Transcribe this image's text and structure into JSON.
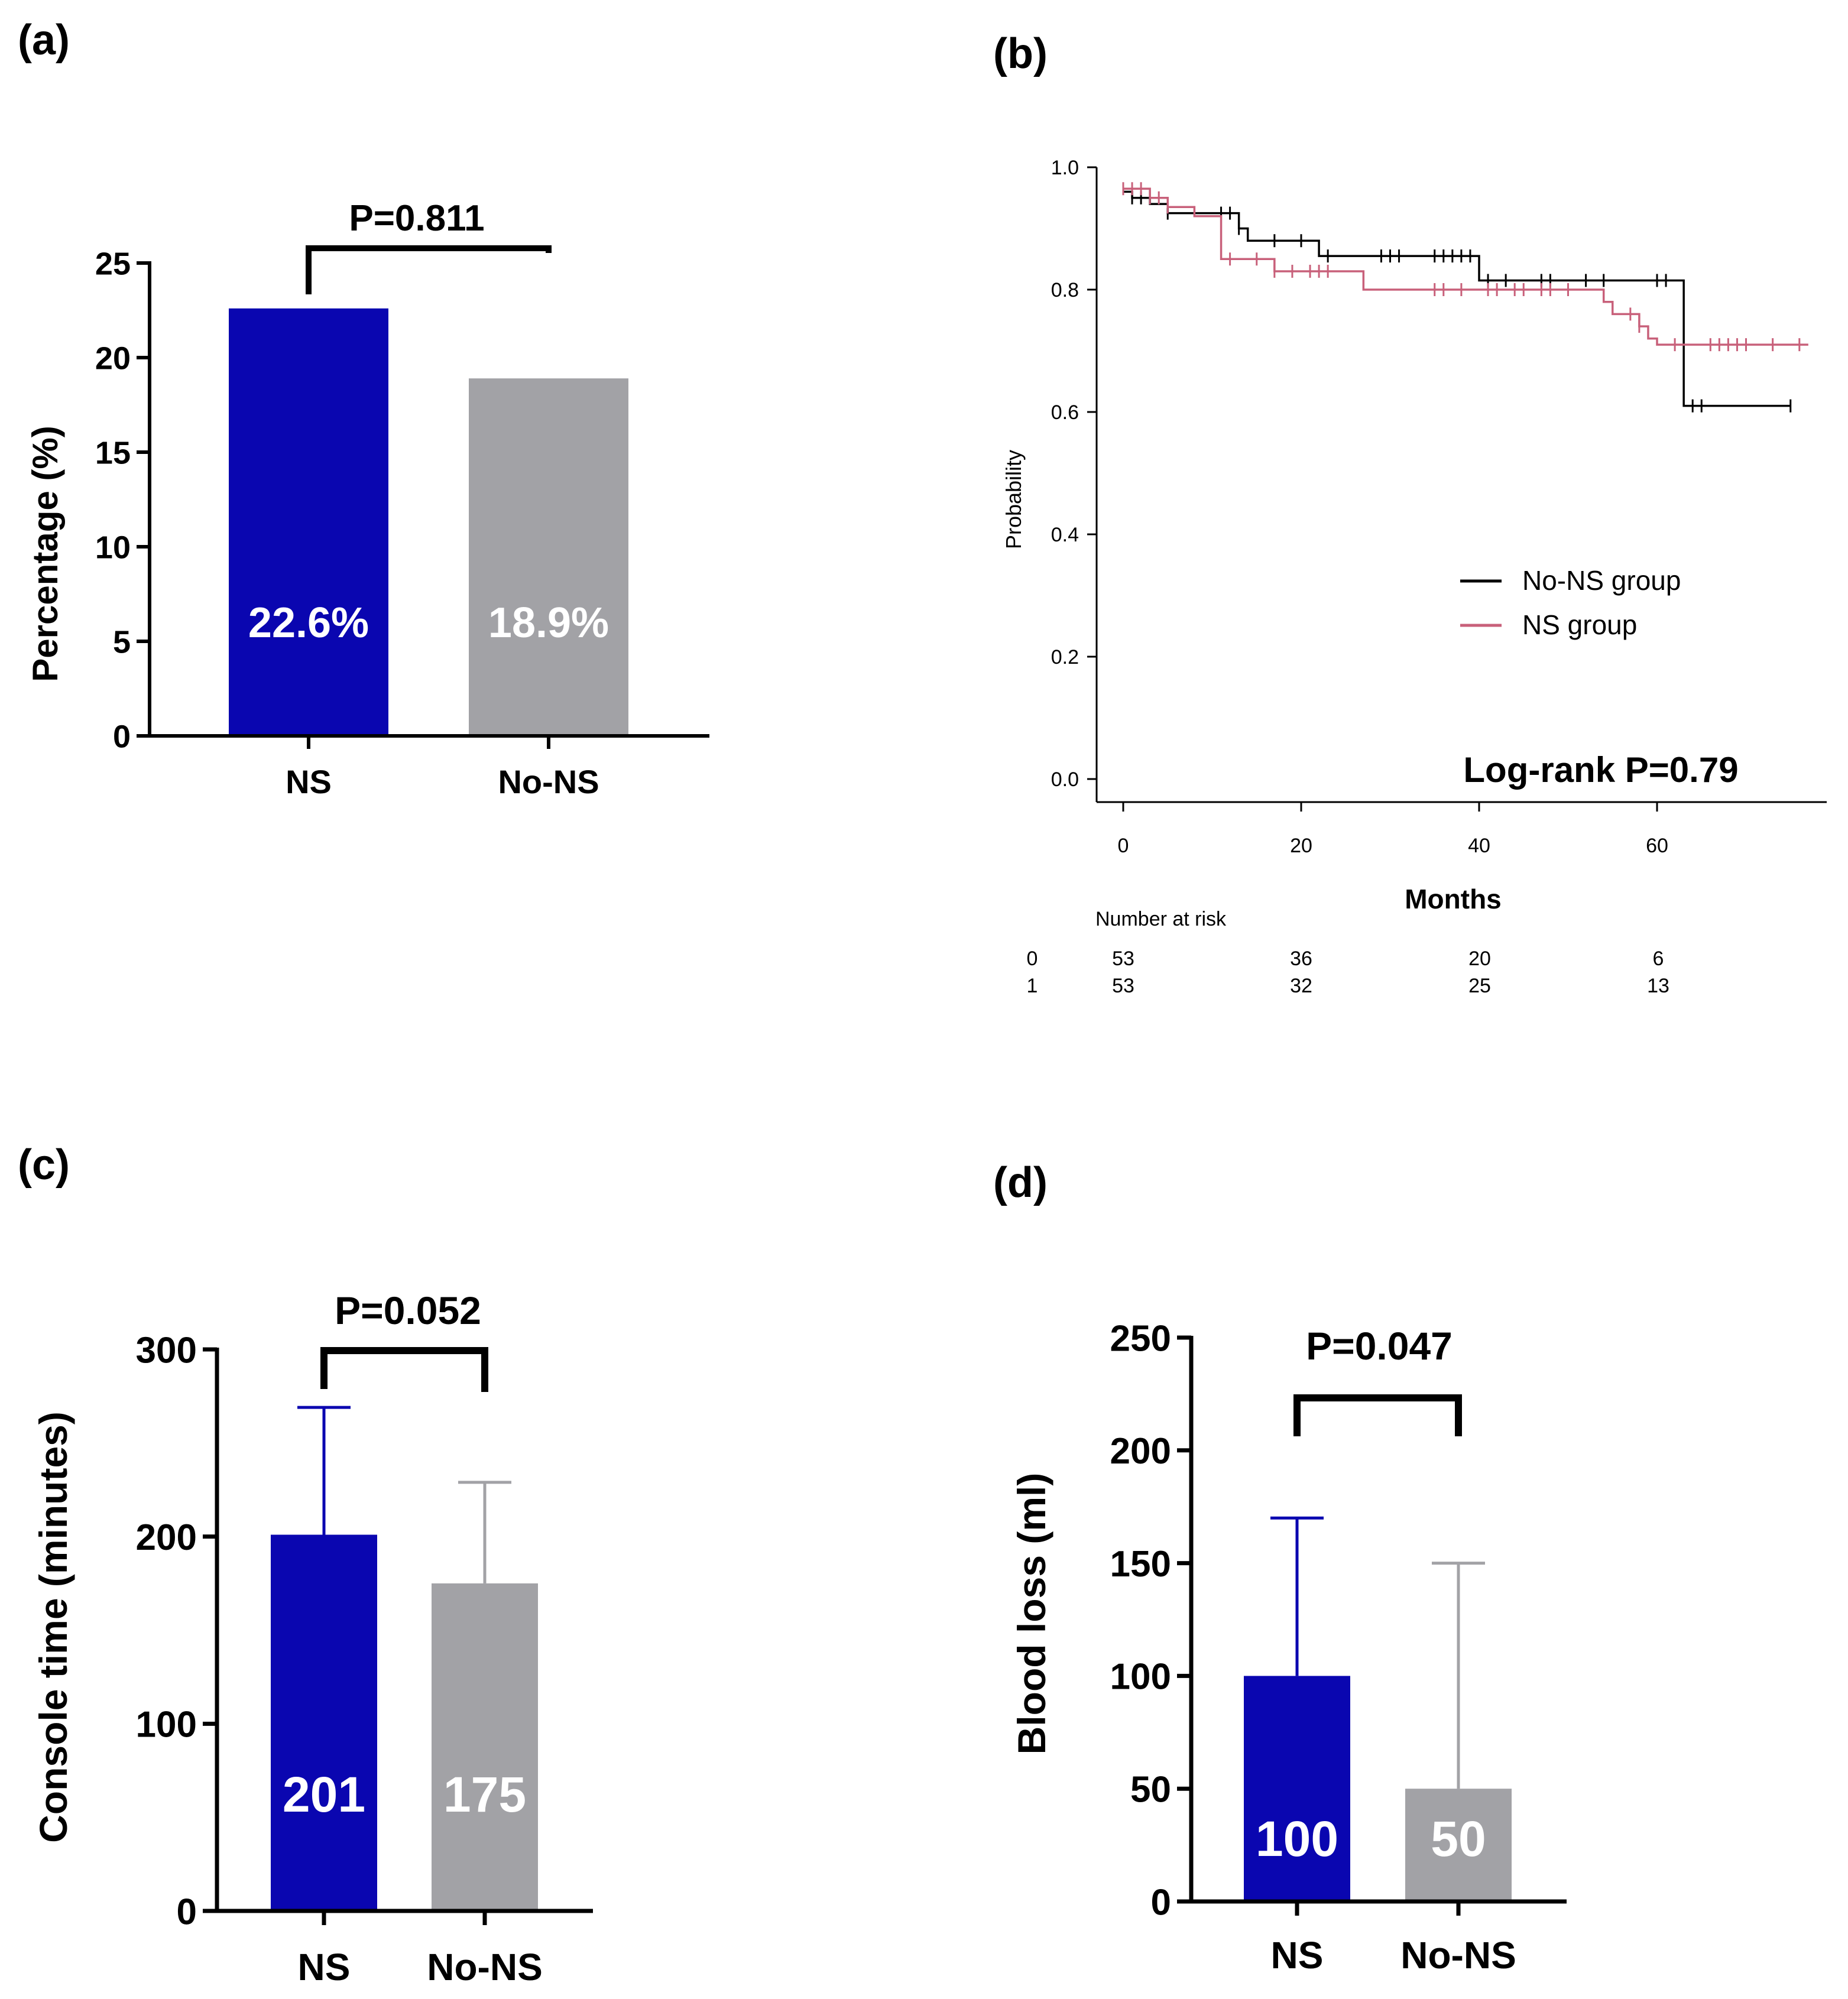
{
  "panels": {
    "a": {
      "label": "(a)"
    },
    "b": {
      "label": "(b)"
    },
    "c": {
      "label": "(c)"
    },
    "d": {
      "label": "(d)"
    }
  },
  "colors": {
    "ns": "#0a06b0",
    "no_ns": "#a2a2a6",
    "km_no_ns": "#000000",
    "km_ns": "#c8607a"
  },
  "chart_data": [
    {
      "id": "a",
      "type": "bar",
      "categories": [
        "NS",
        "No-NS"
      ],
      "values": [
        22.6,
        18.9
      ],
      "value_labels": [
        "22.6%",
        "18.9%"
      ],
      "ylabel": "Percentage (%)",
      "ylim": [
        0,
        25
      ],
      "yticks": [
        0,
        5,
        10,
        15,
        20,
        25
      ],
      "annotation": "P=0.811"
    },
    {
      "id": "b",
      "type": "line",
      "subtype": "kaplan-meier",
      "ylabel": "Probability",
      "xlabel": "Months",
      "xlim": [
        -3,
        79
      ],
      "ylim": [
        -0.04,
        1.0
      ],
      "xticks": [
        0,
        20,
        40,
        60
      ],
      "yticks": [
        "0.0",
        "0.2",
        "0.4",
        "0.6",
        "0.8",
        "1.0"
      ],
      "legend": [
        "No-NS group",
        "NS group"
      ],
      "annotation": "Log-rank P=0.79",
      "series": [
        {
          "name": "No-NS group",
          "color": "#000000",
          "steps": [
            [
              0,
              0.96
            ],
            [
              1,
              0.95
            ],
            [
              3,
              0.94
            ],
            [
              5,
              0.925
            ],
            [
              13,
              0.9
            ],
            [
              14,
              0.88
            ],
            [
              22,
              0.855
            ],
            [
              40,
              0.815
            ],
            [
              63,
              0.61
            ],
            [
              75,
              0.61
            ]
          ],
          "censors": [
            1,
            2,
            5,
            11,
            12,
            13,
            17,
            20,
            23,
            29,
            30,
            31,
            35,
            36,
            37,
            38,
            39,
            41,
            43,
            47,
            48,
            52,
            54,
            60,
            61,
            64,
            65,
            75
          ]
        },
        {
          "name": "NS group",
          "color": "#c8607a",
          "steps": [
            [
              0,
              0.965
            ],
            [
              3,
              0.95
            ],
            [
              5,
              0.935
            ],
            [
              8,
              0.92
            ],
            [
              11,
              0.85
            ],
            [
              17,
              0.83
            ],
            [
              27,
              0.8
            ],
            [
              54,
              0.78
            ],
            [
              55,
              0.76
            ],
            [
              58,
              0.74
            ],
            [
              59,
              0.72
            ],
            [
              60,
              0.71
            ],
            [
              77,
              0.71
            ]
          ],
          "censors": [
            0,
            1,
            2,
            3,
            4,
            5,
            12,
            15,
            17,
            19,
            21,
            22,
            23,
            35,
            36,
            38,
            41,
            42,
            44,
            45,
            47,
            48,
            50,
            57,
            58,
            62,
            66,
            67,
            68,
            69,
            70,
            73,
            76
          ]
        }
      ],
      "risk_table": {
        "title": "Number at risk",
        "times": [
          0,
          20,
          40,
          60
        ],
        "rows": [
          {
            "group": "0",
            "counts": [
              "53",
              "36",
              "20",
              "6"
            ]
          },
          {
            "group": "1",
            "counts": [
              "53",
              "32",
              "25",
              "13"
            ]
          }
        ]
      }
    },
    {
      "id": "c",
      "type": "bar",
      "categories": [
        "NS",
        "No-NS"
      ],
      "values": [
        201,
        175
      ],
      "errors": [
        68,
        54
      ],
      "value_labels": [
        "201",
        "175"
      ],
      "ylabel": "Console time (minutes)",
      "ylim": [
        0,
        300
      ],
      "yticks": [
        0,
        100,
        200,
        300
      ],
      "annotation": "P=0.052"
    },
    {
      "id": "d",
      "type": "bar",
      "categories": [
        "NS",
        "No-NS"
      ],
      "values": [
        100,
        50
      ],
      "errors": [
        70,
        100
      ],
      "value_labels": [
        "100",
        "50"
      ],
      "ylabel": "Blood loss (ml)",
      "ylim": [
        0,
        250
      ],
      "yticks": [
        0,
        50,
        100,
        150,
        200,
        250
      ],
      "annotation": "P=0.047"
    }
  ]
}
